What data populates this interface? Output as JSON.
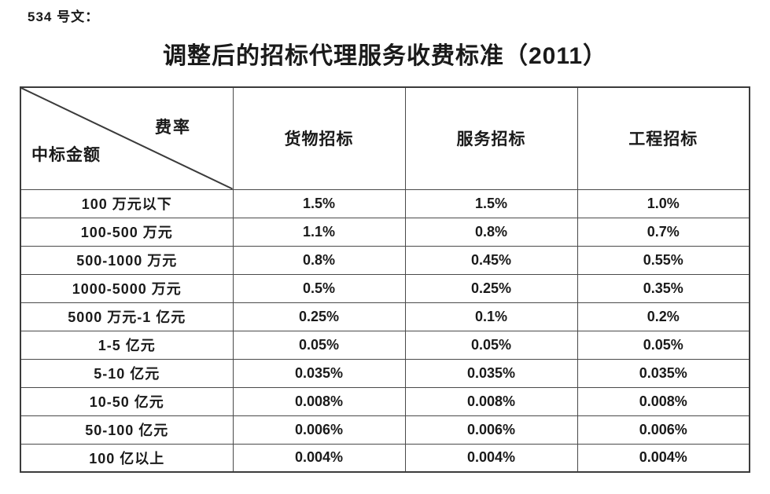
{
  "doc": {
    "doc_number": "534 号文：",
    "title": "调整后的招标代理服务收费标准（2011）"
  },
  "table": {
    "corner": {
      "top_right": "费率",
      "bottom_left": "中标金额"
    },
    "columns": [
      "货物招标",
      "服务招标",
      "工程招标"
    ],
    "rows": [
      {
        "label": "100 万元以下",
        "values": [
          "1.5%",
          "1.5%",
          "1.0%"
        ]
      },
      {
        "label": "100-500 万元",
        "values": [
          "1.1%",
          "0.8%",
          "0.7%"
        ]
      },
      {
        "label": "500-1000 万元",
        "values": [
          "0.8%",
          "0.45%",
          "0.55%"
        ]
      },
      {
        "label": "1000-5000 万元",
        "values": [
          "0.5%",
          "0.25%",
          "0.35%"
        ]
      },
      {
        "label": "5000 万元-1 亿元",
        "values": [
          "0.25%",
          "0.1%",
          "0.2%"
        ]
      },
      {
        "label": "1-5 亿元",
        "values": [
          "0.05%",
          "0.05%",
          "0.05%"
        ]
      },
      {
        "label": "5-10 亿元",
        "values": [
          "0.035%",
          "0.035%",
          "0.035%"
        ]
      },
      {
        "label": "10-50 亿元",
        "values": [
          "0.008%",
          "0.008%",
          "0.008%"
        ]
      },
      {
        "label": "50-100 亿元",
        "values": [
          "0.006%",
          "0.006%",
          "0.006%"
        ]
      },
      {
        "label": "100 亿以上",
        "values": [
          "0.004%",
          "0.004%",
          "0.004%"
        ]
      }
    ],
    "border_color": "#3b3b3b"
  }
}
